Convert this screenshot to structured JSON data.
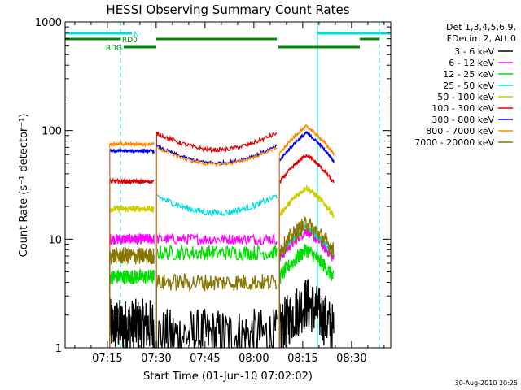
{
  "chart_data": {
    "type": "line",
    "title": "HESSI Observing Summary Count Rates",
    "xlabel": "Start Time (01-Jun-10 07:02:02)",
    "ylabel": "Count Rate (s⁻¹ detector⁻¹)",
    "ylog": true,
    "ylim": [
      1,
      1000
    ],
    "xlim_min": [
      0,
      100
    ],
    "xticks": [
      {
        "label": "07:15",
        "min": 12.97
      },
      {
        "label": "07:30",
        "min": 27.97
      },
      {
        "label": "07:45",
        "min": 42.97
      },
      {
        "label": "08:00",
        "min": 57.97
      },
      {
        "label": "08:15",
        "min": 72.97
      },
      {
        "label": "08:30",
        "min": 87.97
      }
    ],
    "yticks": [
      {
        "label": "1",
        "value": 1
      },
      {
        "label": "10",
        "value": 10
      },
      {
        "label": "100",
        "value": 100
      },
      {
        "label": "1000",
        "value": 1000
      }
    ],
    "legend": {
      "header": [
        "Det 1,3,4,5,6,9,",
        "FDecim 2, Att 0"
      ],
      "placement": "right"
    },
    "segments": [
      [
        13.7,
        27.3
      ],
      [
        28.1,
        65.0
      ],
      [
        65.8,
        82.5
      ]
    ],
    "series": [
      {
        "name": "3 - 6 keV",
        "color": "#000000",
        "shape": "flat",
        "levels": [
          1.6,
          1.3,
          2.6
        ],
        "jitter": 0.25
      },
      {
        "name": "6 - 12 keV",
        "color": "#ff00ff",
        "shape": "flat",
        "levels": [
          10.0,
          10.0,
          12.0
        ],
        "jitter": 0.05
      },
      {
        "name": "12 - 25 keV",
        "color": "#00dd00",
        "shape": "flat",
        "levels": [
          4.5,
          7.5,
          8.0
        ],
        "jitter": 0.07
      },
      {
        "name": "25 - 50 keV",
        "color": "#00dddd",
        "shape": "dip",
        "levels": [
          0,
          25.0,
          13.0
        ],
        "jitter": 0.03
      },
      {
        "name": "50 - 100 keV",
        "color": "#cccc00",
        "shape": "flat",
        "levels": [
          19.0,
          0,
          30.0
        ],
        "jitter": 0.03
      },
      {
        "name": "100 - 300 keV",
        "color": "#dd0000",
        "shape": "dip",
        "levels": [
          34.0,
          95.0,
          60.0
        ],
        "jitter": 0.02
      },
      {
        "name": "300 - 800 keV",
        "color": "#0000ee",
        "shape": "dip",
        "levels": [
          65.0,
          72.0,
          95.0
        ],
        "jitter": 0.015
      },
      {
        "name": "800 - 7000 keV",
        "color": "#ff8800",
        "shape": "dip",
        "levels": [
          75.0,
          70.0,
          110.0
        ],
        "jitter": 0.015
      },
      {
        "name": "7000 - 20000 keV",
        "color": "#887700",
        "shape": "flat",
        "levels": [
          7.0,
          4.0,
          14.0
        ],
        "jitter": 0.08
      }
    ],
    "annotations": {
      "bars": [
        {
          "color": "#00dddd",
          "label": "N",
          "level": 1,
          "spans": [
            [
              0,
              20.5
            ],
            [
              77.5,
              100
            ]
          ]
        },
        {
          "color": "#008800",
          "label": "RD0",
          "level": 2,
          "spans": [
            [
              0,
              17.0
            ],
            [
              28.0,
              65.0
            ],
            [
              90.5,
              96.5
            ]
          ]
        },
        {
          "color": "#008800",
          "label": "RDG",
          "level": 3,
          "spans": [
            [
              18.0,
              28.0
            ],
            [
              65.5,
              90.5
            ]
          ]
        }
      ],
      "vlines_solid": [
        0,
        77.5
      ],
      "vlines_dashed": [
        17.0,
        96.5
      ]
    },
    "grid": false
  },
  "footer": {
    "timestamp": "30-Aug-2010 20:25"
  }
}
